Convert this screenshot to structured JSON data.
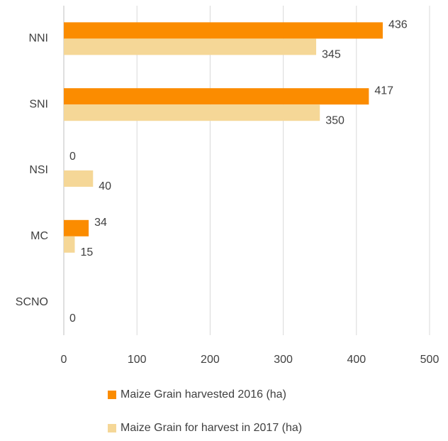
{
  "chart_data": {
    "type": "barh",
    "categories": [
      "NNI",
      "SNI",
      "NSI",
      "MC",
      "SCNO"
    ],
    "series": [
      {
        "name": "Maize Grain harvested 2016 (ha)",
        "color": "#fb8c00",
        "values": [
          436,
          417,
          0,
          34,
          null
        ]
      },
      {
        "name": "Maize Grain for harvest in 2017 (ha)",
        "color": "#f5d797",
        "values": [
          345,
          350,
          40,
          15,
          0
        ]
      }
    ],
    "xlim": [
      0,
      500
    ],
    "xticks": [
      0,
      100,
      200,
      300,
      400,
      500
    ],
    "grid": true,
    "legend": "bottom"
  }
}
